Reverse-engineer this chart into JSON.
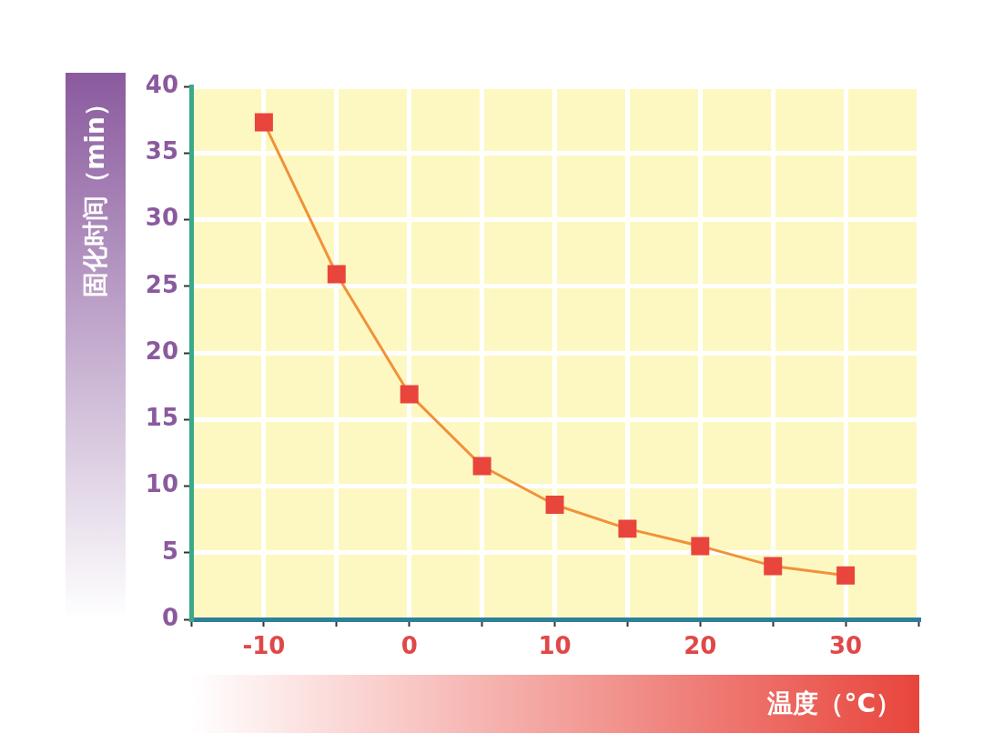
{
  "chart_data": {
    "type": "line",
    "xlabel": "温度（°C）",
    "ylabel": "固化时间（min）",
    "x": [
      -10,
      -5,
      0,
      5,
      10,
      15,
      20,
      25,
      30
    ],
    "series": [
      {
        "color": "#e8453c",
        "values": [
          37.3,
          25.9,
          16.9,
          11.5,
          8.6,
          6.8,
          5.5,
          4.0,
          3.3
        ]
      }
    ],
    "xlim": [
      -15,
      35
    ],
    "xticks": [
      {
        "value": -15,
        "label": null
      },
      -10,
      {
        "value": -5,
        "label": null
      },
      0,
      {
        "value": 5,
        "label": null
      },
      10,
      {
        "value": 15,
        "label": null
      },
      20,
      {
        "value": 25,
        "label": null
      },
      30,
      {
        "value": 35,
        "label": null
      }
    ],
    "ylim": [
      0,
      40
    ],
    "yticks": [
      0,
      5,
      10,
      15,
      20,
      25,
      30,
      35,
      40
    ],
    "grid": true,
    "legend": false,
    "marker": "square",
    "line_style": "solid"
  }
}
